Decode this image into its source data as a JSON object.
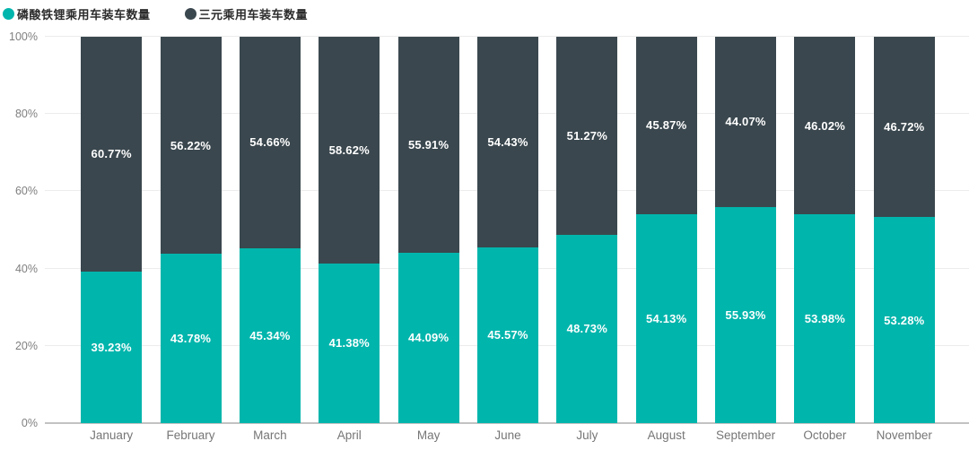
{
  "legend": {
    "items": [
      {
        "label": "磷酸铁锂乘用车装车数量",
        "color": "#00B5AC"
      },
      {
        "label": "三元乘用车装车数量",
        "color": "#3A474E"
      }
    ]
  },
  "axes": {
    "yticks": [
      "0%",
      "20%",
      "40%",
      "60%",
      "80%",
      "100%"
    ]
  },
  "chart_data": {
    "type": "bar",
    "stacked": true,
    "stacked_mode": "percent",
    "title": "",
    "xlabel": "",
    "ylabel": "",
    "ylim": [
      0,
      100
    ],
    "ytick_labels": [
      "0%",
      "20%",
      "40%",
      "60%",
      "80%",
      "100%"
    ],
    "grid": true,
    "legend_position": "top-left",
    "categories": [
      "January",
      "February",
      "March",
      "April",
      "May",
      "June",
      "July",
      "August",
      "September",
      "October",
      "November"
    ],
    "series": [
      {
        "name": "磷酸铁锂乘用车装车数量",
        "color": "#00B5AC",
        "position": "bottom",
        "values": [
          39.23,
          43.78,
          45.34,
          41.38,
          44.09,
          45.57,
          48.73,
          54.13,
          55.93,
          53.98,
          53.28
        ]
      },
      {
        "name": "三元乘用车装车数量",
        "color": "#3A474E",
        "position": "top",
        "values": [
          60.77,
          56.22,
          54.66,
          58.62,
          55.91,
          54.43,
          51.27,
          45.87,
          44.07,
          46.02,
          46.72
        ]
      }
    ],
    "value_label_format": "0.00%",
    "colors": {
      "gridline": "#ececec",
      "baseline": "#c2c2c2",
      "tick_text": "#7f7f7f",
      "bar_label_text": "#ffffff"
    }
  }
}
